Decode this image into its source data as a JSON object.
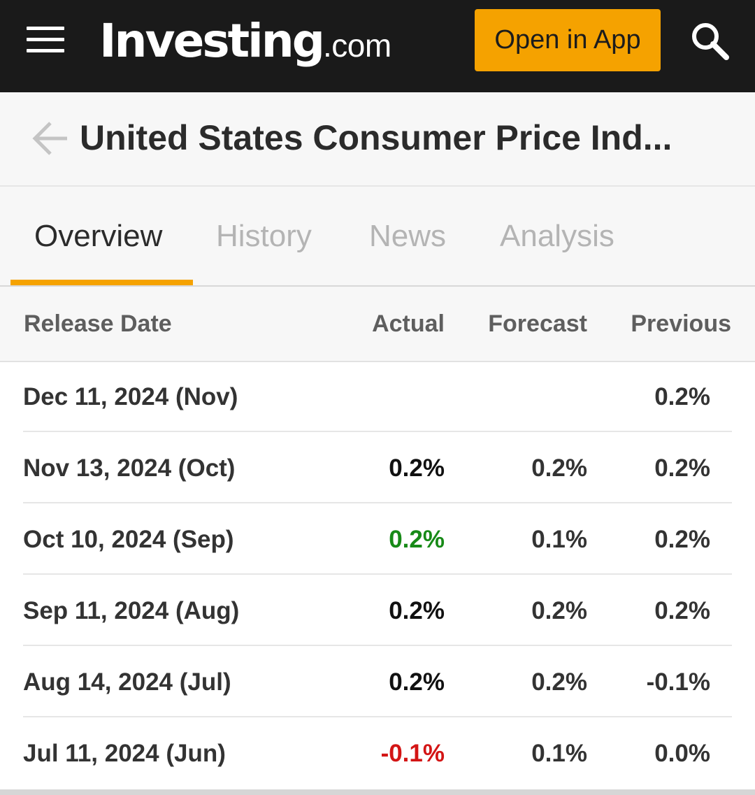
{
  "header": {
    "logo_main": "Investing",
    "logo_suffix": ".com",
    "open_app_label": "Open in App",
    "icons": [
      "hamburger-icon",
      "search-icon"
    ]
  },
  "titlebar": {
    "title": "United States Consumer Price Ind...",
    "icons": [
      "back-arrow-icon"
    ]
  },
  "tabs": [
    {
      "label": "Overview",
      "active": true
    },
    {
      "label": "History",
      "active": false
    },
    {
      "label": "News",
      "active": false
    },
    {
      "label": "Analysis",
      "active": false
    }
  ],
  "table": {
    "columns": [
      "Release Date",
      "Actual",
      "Forecast",
      "Previous"
    ],
    "rows": [
      {
        "release_date": "Dec 11, 2024 (Nov)",
        "actual": "",
        "forecast": "",
        "previous": "0.2%"
      },
      {
        "release_date": "Nov 13, 2024 (Oct)",
        "actual": "0.2%",
        "forecast": "0.2%",
        "previous": "0.2%"
      },
      {
        "release_date": "Oct 10, 2024 (Sep)",
        "actual": "0.2%",
        "forecast": "0.1%",
        "previous": "0.2%"
      },
      {
        "release_date": "Sep 11, 2024 (Aug)",
        "actual": "0.2%",
        "forecast": "0.2%",
        "previous": "0.2%"
      },
      {
        "release_date": "Aug 14, 2024 (Jul)",
        "actual": "0.2%",
        "forecast": "0.2%",
        "previous": "-0.1%"
      },
      {
        "release_date": "Jul 11, 2024 (Jun)",
        "actual": "-0.1%",
        "forecast": "0.1%",
        "previous": "0.0%"
      }
    ]
  },
  "colors": {
    "brand_accent": "#f5a200",
    "header_bg": "#1a1a1a",
    "positive": "#178a17",
    "negative": "#d31515"
  }
}
